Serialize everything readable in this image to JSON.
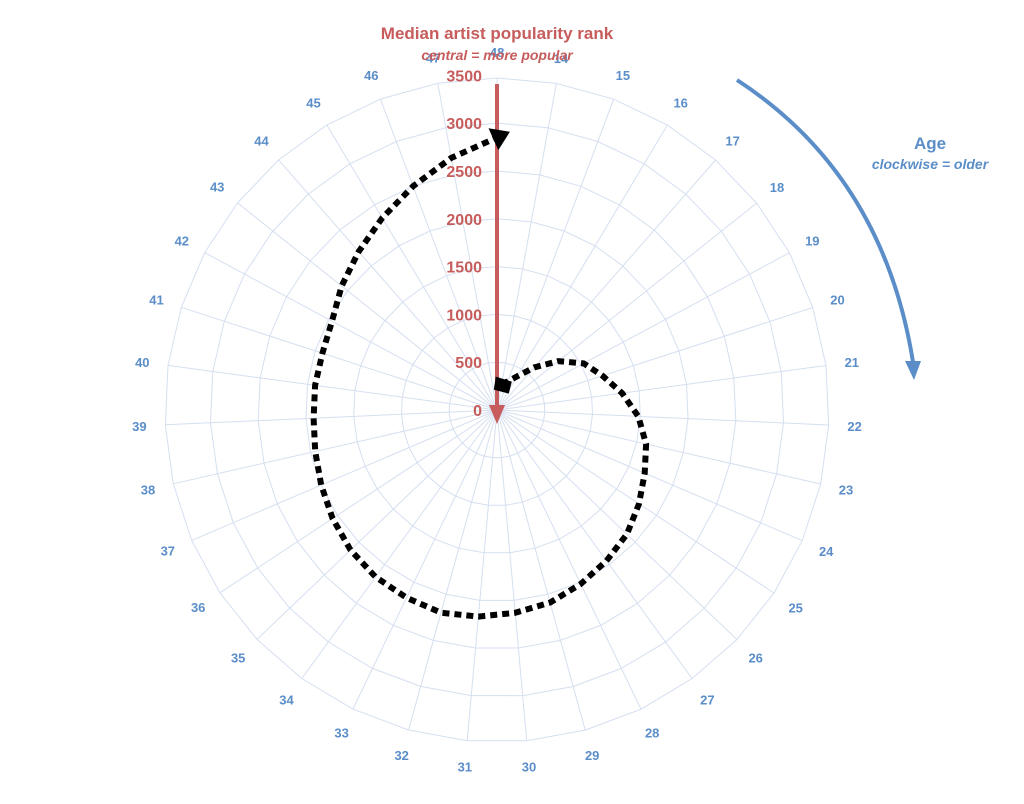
{
  "chart_data": {
    "type": "radial-line",
    "title": "Median artist popularity rank",
    "subtitle": "central = more popular",
    "angular_axis": {
      "title": "Age",
      "subtitle": "clockwise = older",
      "labels": [
        "14",
        "15",
        "16",
        "17",
        "18",
        "19",
        "20",
        "21",
        "22",
        "23",
        "24",
        "25",
        "26",
        "27",
        "28",
        "29",
        "30",
        "31",
        "32",
        "33",
        "34",
        "35",
        "36",
        "37",
        "38",
        "39",
        "40",
        "41",
        "42",
        "43",
        "44",
        "45",
        "46",
        "47",
        "48"
      ]
    },
    "radial_axis": {
      "range": [
        0,
        3500
      ],
      "ticks": [
        "0",
        "500",
        "1000",
        "1500",
        "2000",
        "2500",
        "3000",
        "3500"
      ]
    },
    "series": [
      {
        "x": [
          14,
          15,
          16,
          17,
          18,
          19,
          20,
          21,
          22,
          23,
          24,
          25,
          26,
          27,
          28,
          29,
          30,
          31,
          32,
          33,
          34,
          35,
          36,
          37,
          38,
          39,
          40,
          41,
          42,
          43,
          44,
          45,
          46,
          47,
          48
        ],
        "values": [
          280,
          320,
          410,
          590,
          820,
          1030,
          1160,
          1320,
          1480,
          1600,
          1680,
          1780,
          1880,
          1950,
          2020,
          2090,
          2130,
          2170,
          2200,
          2180,
          2160,
          2120,
          2060,
          2000,
          1950,
          1920,
          1920,
          1920,
          1960,
          2080,
          2200,
          2340,
          2500,
          2680,
          2850
        ]
      }
    ],
    "colors": {
      "rank_axis": "#c75c5c",
      "age": "#5b8ec8",
      "grid": "#d5dff0",
      "series": "#000000"
    }
  }
}
